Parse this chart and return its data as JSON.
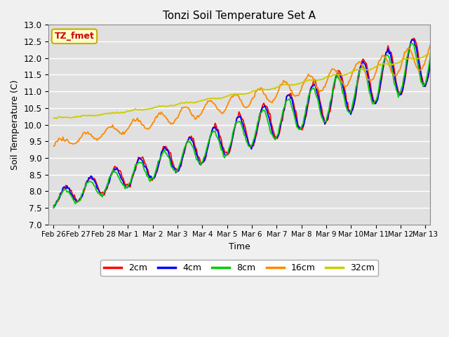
{
  "title": "Tonzi Soil Temperature Set A",
  "xlabel": "Time",
  "ylabel": "Soil Temperature (C)",
  "ylim": [
    7.0,
    13.0
  ],
  "yticks": [
    7.0,
    7.5,
    8.0,
    8.5,
    9.0,
    9.5,
    10.0,
    10.5,
    11.0,
    11.5,
    12.0,
    12.5,
    13.0
  ],
  "xtick_labels": [
    "Feb 26",
    "Feb 27",
    "Feb 28",
    "Mar 1",
    "Mar 2",
    "Mar 3",
    "Mar 4",
    "Mar 5",
    "Mar 6",
    "Mar 7",
    "Mar 8",
    "Mar 9",
    "Mar 10",
    "Mar 11",
    "Mar 12",
    "Mar 13"
  ],
  "legend_label": "TZ_fmet",
  "series_labels": [
    "2cm",
    "4cm",
    "8cm",
    "16cm",
    "32cm"
  ],
  "series_colors": [
    "#ff0000",
    "#0000ff",
    "#00cc00",
    "#ff8800",
    "#cccc00"
  ],
  "fig_facecolor": "#f0f0f0",
  "ax_facecolor": "#e0e0e0",
  "grid_color": "#ffffff",
  "annotation_facecolor": "#ffffcc",
  "annotation_edgecolor": "#ccaa00",
  "annotation_textcolor": "#cc0000"
}
